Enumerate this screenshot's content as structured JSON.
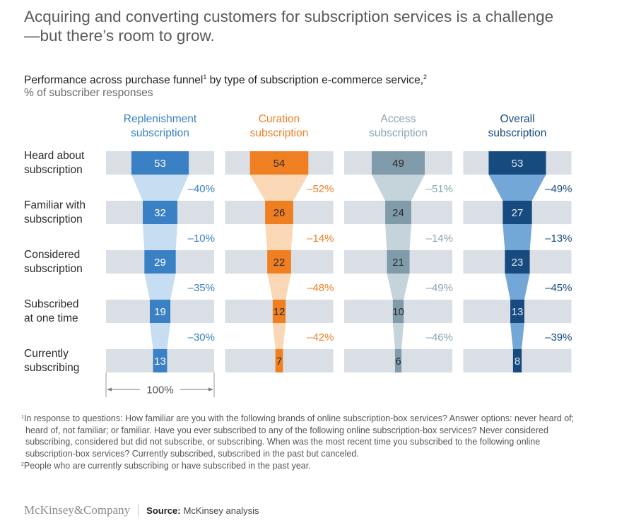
{
  "headline": "Acquiring and converting customers for subscription services is a challenge—but there’s room to grow.",
  "subtitle": {
    "text_a": "Performance across purchase funnel",
    "sup_a": "1",
    "text_b": " by type of subscription e-commerce service,",
    "sup_b": "2"
  },
  "units": "% of subscriber responses",
  "chart_data": {
    "type": "bar",
    "subtype": "funnel",
    "title": "Performance across purchase funnel by type of subscription e-commerce service",
    "ylabel": "% of subscriber responses",
    "categories": [
      "Heard about subscription",
      "Familiar with subscription",
      "Considered subscription",
      "Subscribed at one time",
      "Currently subscribing"
    ],
    "category_lines": [
      [
        "Heard about",
        "subscription"
      ],
      [
        "Familiar with",
        "subscription"
      ],
      [
        "Considered",
        "subscription"
      ],
      [
        "Subscribed",
        "at one time"
      ],
      [
        "Currently",
        "subscribing"
      ]
    ],
    "scale_label": "100%",
    "xlim": [
      0,
      100
    ],
    "series": [
      {
        "name": "Replenishment subscription",
        "title_lines": [
          "Replenishment",
          "subscription"
        ],
        "values": [
          53,
          32,
          29,
          19,
          13
        ],
        "dropoffs": [
          "–40%",
          "–10%",
          "–35%",
          "–30%"
        ],
        "color": "#3a80c4",
        "light": "#c7ddf1",
        "title_color": "#3a80c4",
        "label_color": "#ffffff",
        "pct_color": "#3a80c4"
      },
      {
        "name": "Curation subscription",
        "title_lines": [
          "Curation",
          "subscription"
        ],
        "values": [
          54,
          26,
          22,
          12,
          7
        ],
        "dropoffs": [
          "–52%",
          "–14%",
          "–48%",
          "–42%"
        ],
        "color": "#f07f22",
        "light": "#fbd8b5",
        "title_color": "#ee8128",
        "label_color": "#2a2a2a",
        "pct_color": "#ee8128"
      },
      {
        "name": "Access subscription",
        "title_lines": [
          "Access",
          "subscription"
        ],
        "values": [
          49,
          24,
          21,
          10,
          6
        ],
        "dropoffs": [
          "–51%",
          "–14%",
          "–49%",
          "–46%"
        ],
        "color": "#809cab",
        "light": "#c5d3db",
        "title_color": "#8aa5b4",
        "label_color": "#2a2a2a",
        "pct_color": "#8aa5b4"
      },
      {
        "name": "Overall subscription",
        "title_lines": [
          "Overall",
          "subscription"
        ],
        "values": [
          53,
          27,
          23,
          13,
          8
        ],
        "dropoffs": [
          "–49%",
          "–13%",
          "–45%",
          "–39%"
        ],
        "color": "#174b80",
        "light": "#73a7d8",
        "title_color": "#174b80",
        "label_color": "#dde7f2",
        "pct_color": "#174b80"
      }
    ],
    "track_color": "#d9dfe5"
  },
  "footnotes": [
    {
      "sup": "1",
      "text": "In response to questions: How familiar are you with the following brands of online subscription-box services? Answer options: never heard of; heard of, not familiar; or familiar. Have you ever subscribed to any of the following online subscription-box services? Never considered subscribing, considered but did not subscribe, or subscribing. When was the most recent time you subscribed to the following online subscription-box services? Currently subscribed, subscribed in the past but canceled."
    },
    {
      "sup": "2",
      "text": "People who are currently subscribing or have subscribed in the past year."
    }
  ],
  "brand": {
    "logo": "McKinsey&Company",
    "source_label": "Source:",
    "source_text": "McKinsey analysis"
  }
}
